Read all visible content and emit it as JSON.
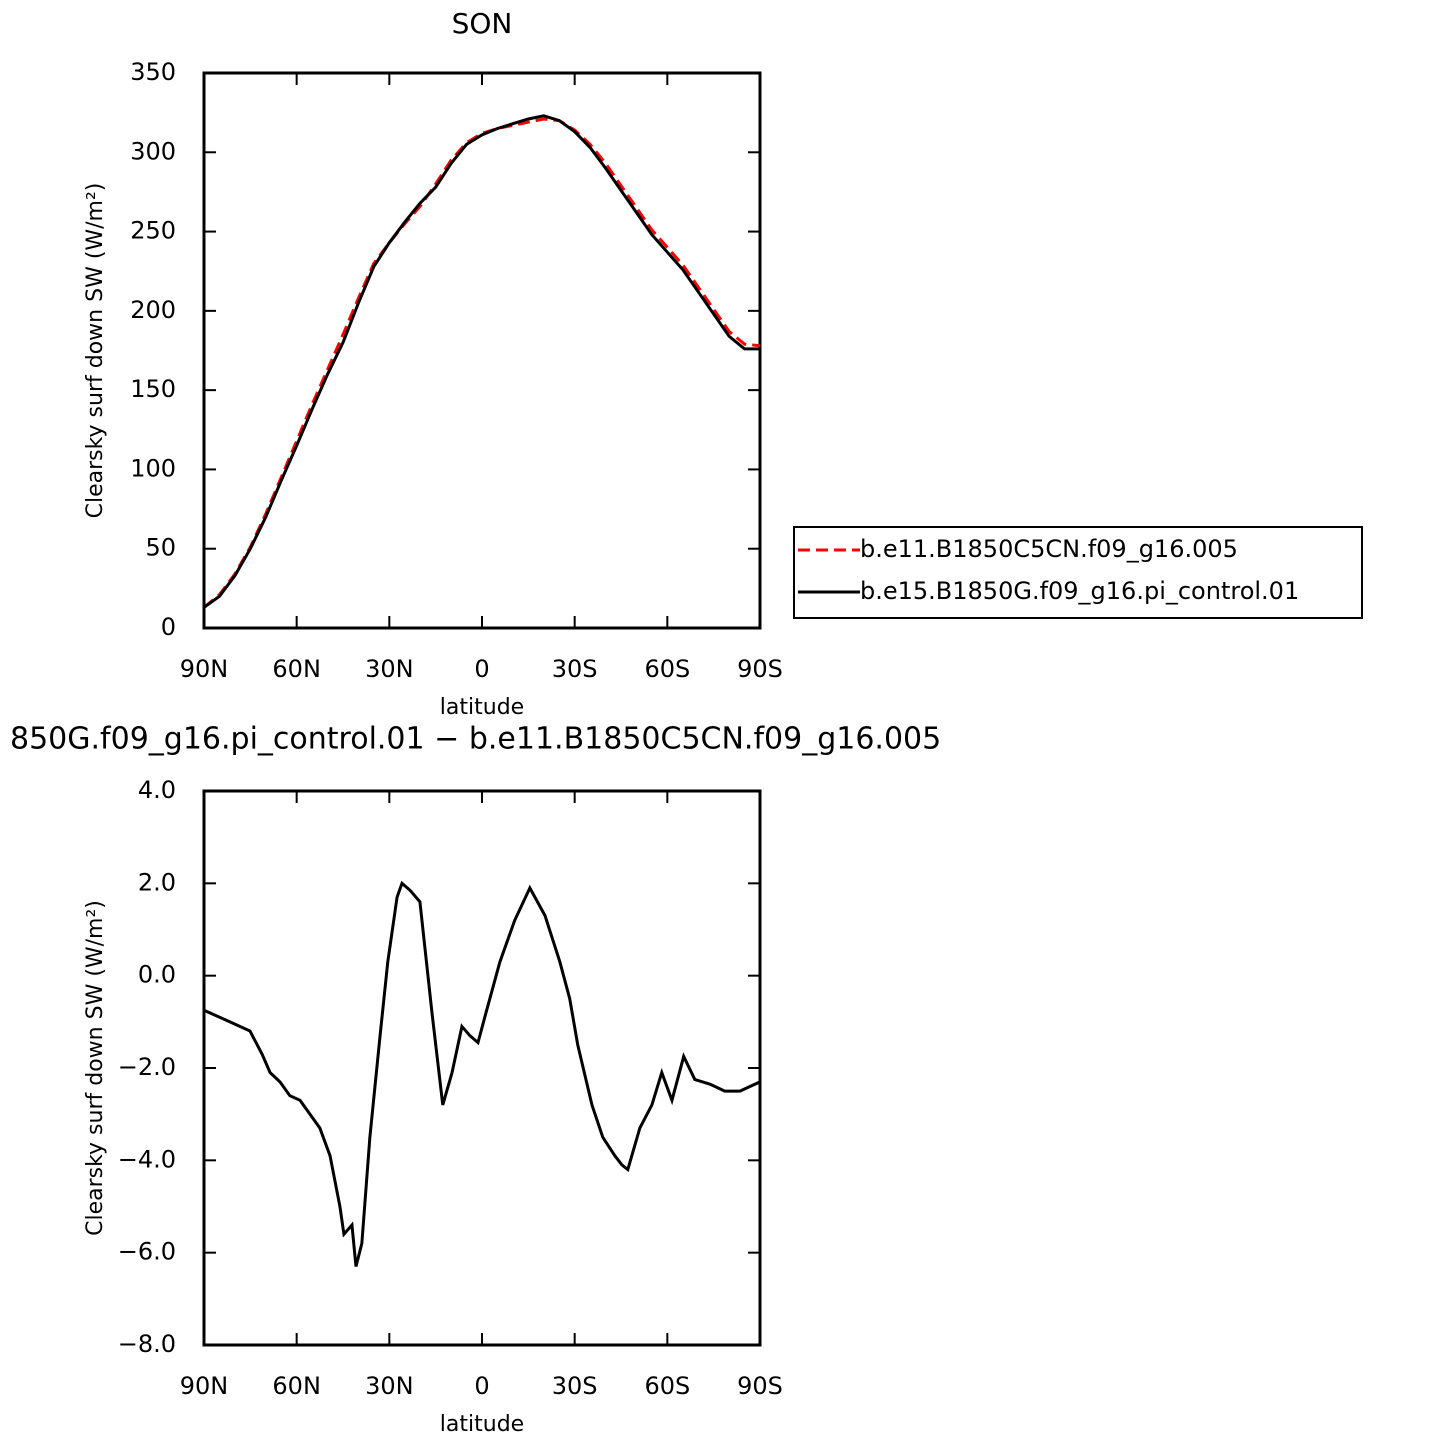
{
  "chart_data": [
    {
      "type": "line",
      "title": "SON",
      "x_label": "latitude",
      "y_label": "Clearsky surf down SW (W/m²)",
      "x": [
        90,
        85,
        80,
        75,
        70,
        65,
        60,
        55,
        50,
        45,
        40,
        35,
        30,
        25,
        20,
        15,
        10,
        5,
        0,
        -5,
        -10,
        -15,
        -20,
        -25,
        -30,
        -35,
        -40,
        -45,
        -50,
        -55,
        -60,
        -65,
        -70,
        -75,
        -80,
        -85,
        -90
      ],
      "series": [
        {
          "name": "b.e11.B1850C5CN.f09_g16.005",
          "color": "#ff0000",
          "style": "dashed",
          "values": [
            13,
            21,
            34,
            51,
            72,
            95,
            118,
            141,
            163,
            185,
            208,
            230,
            243,
            255,
            266,
            280,
            295,
            306,
            312,
            315,
            317,
            319,
            321,
            320,
            314,
            305,
            293,
            279,
            265,
            251,
            240,
            229,
            215,
            201,
            187,
            179,
            178
          ]
        },
        {
          "name": "b.e15.B1850G.f09_g16.pi_control.01",
          "color": "#000000",
          "style": "solid",
          "values": [
            13,
            20,
            33,
            50,
            70,
            93,
            115,
            138,
            160,
            180,
            205,
            228,
            243,
            256,
            268,
            278,
            293,
            305,
            311,
            315,
            318,
            321,
            323,
            320,
            313,
            303,
            290,
            276,
            262,
            248,
            237,
            226,
            212,
            198,
            184,
            176,
            176
          ]
        }
      ],
      "xlim": [
        90,
        -90
      ],
      "xticks": [
        {
          "value": 90,
          "label": "90N"
        },
        {
          "value": 60,
          "label": "60N"
        },
        {
          "value": 30,
          "label": "30N"
        },
        0,
        {
          "value": -30,
          "label": "30S"
        },
        {
          "value": -60,
          "label": "60S"
        },
        {
          "value": -90,
          "label": "90S"
        }
      ],
      "ylim": [
        0,
        350
      ],
      "yticks": [
        0,
        50,
        100,
        150,
        200,
        250,
        300,
        350
      ],
      "legend": "outside-right"
    },
    {
      "type": "line",
      "title": "850G.f09_g16.pi_control.01 − b.e11.B1850C5CN.f09_g16.005",
      "x_label": "latitude",
      "y_label": "Clearsky surf down SW (W/m²)",
      "x": [
        90,
        81.6,
        75.1,
        71.2,
        68.6,
        65.4,
        62.2,
        58.9,
        52.5,
        49.2,
        46,
        44.7,
        42.1,
        40.8,
        38.9,
        36.3,
        33,
        30.5,
        27.5,
        25.9,
        23.3,
        20.1,
        16.2,
        12.7,
        9.7,
        6.5,
        3.9,
        1.3,
        -1.3,
        -5.8,
        -10.6,
        -15.5,
        -20.4,
        -25.2,
        -28.4,
        -31,
        -35.6,
        -39.1,
        -43,
        -45.3,
        -47.2,
        -51.1,
        -55,
        -58.2,
        -61.5,
        -65.3,
        -68.9,
        -73.8,
        -78.6,
        -83.5,
        -90
      ],
      "series": [
        {
          "color": "#000000",
          "style": "solid",
          "values": [
            -0.75,
            -1.0,
            -1.2,
            -1.7,
            -2.1,
            -2.3,
            -2.6,
            -2.7,
            -3.3,
            -3.9,
            -5.0,
            -5.6,
            -5.4,
            -6.3,
            -5.8,
            -3.5,
            -1.3,
            0.3,
            1.7,
            2.0,
            1.85,
            1.6,
            -0.8,
            -2.8,
            -2.1,
            -1.1,
            -1.3,
            -1.45,
            -0.8,
            0.3,
            1.2,
            1.9,
            1.3,
            0.3,
            -0.5,
            -1.5,
            -2.8,
            -3.5,
            -3.9,
            -4.1,
            -4.2,
            -3.3,
            -2.8,
            -2.1,
            -2.7,
            -1.75,
            -2.25,
            -2.35,
            -2.5,
            -2.5,
            -2.3
          ]
        }
      ],
      "xlim": [
        90,
        -90
      ],
      "xticks": [
        {
          "value": 90,
          "label": "90N"
        },
        {
          "value": 60,
          "label": "60N"
        },
        {
          "value": 30,
          "label": "30N"
        },
        0,
        {
          "value": -30,
          "label": "30S"
        },
        {
          "value": -60,
          "label": "60S"
        },
        {
          "value": -90,
          "label": "90S"
        }
      ],
      "ylim": [
        -8,
        4
      ],
      "yticks": [
        {
          "value": -8,
          "label": "−8.0"
        },
        {
          "value": -6,
          "label": "−6.0"
        },
        {
          "value": -4,
          "label": "−4.0"
        },
        {
          "value": -2,
          "label": "−2.0"
        },
        {
          "value": 0,
          "label": "0.0"
        },
        {
          "value": 2,
          "label": "2.0"
        },
        {
          "value": 4,
          "label": "4.0"
        }
      ]
    }
  ]
}
